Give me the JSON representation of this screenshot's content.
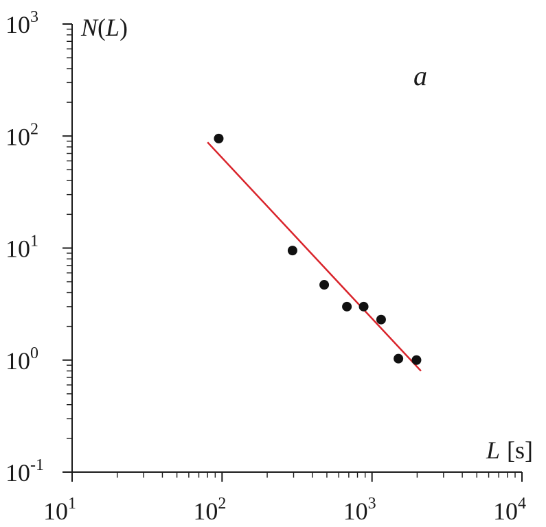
{
  "chart_data": {
    "type": "scatter",
    "panel_label": "a",
    "xlabel": {
      "symbol": "L",
      "unit": "[s]"
    },
    "ylabel": {
      "func": "N",
      "paren_open": "(",
      "symbol": "L",
      "paren_close": ")"
    },
    "x_scale": "log",
    "y_scale": "log",
    "xlim": [
      10,
      10000
    ],
    "ylim": [
      0.1,
      1000
    ],
    "x_ticks": [
      {
        "value": 10,
        "base": "10",
        "exp": "1"
      },
      {
        "value": 100,
        "base": "10",
        "exp": "2"
      },
      {
        "value": 1000,
        "base": "10",
        "exp": "3"
      },
      {
        "value": 10000,
        "base": "10",
        "exp": "4"
      }
    ],
    "y_ticks": [
      {
        "value": 0.1,
        "base": "10",
        "exp": "-1"
      },
      {
        "value": 1,
        "base": "10",
        "exp": "0"
      },
      {
        "value": 10,
        "base": "10",
        "exp": "1"
      },
      {
        "value": 100,
        "base": "10",
        "exp": "2"
      },
      {
        "value": 1000,
        "base": "10",
        "exp": "3"
      }
    ],
    "points": [
      {
        "x": 95,
        "y": 95
      },
      {
        "x": 295,
        "y": 9.5
      },
      {
        "x": 480,
        "y": 4.7
      },
      {
        "x": 680,
        "y": 3.0
      },
      {
        "x": 880,
        "y": 3.0
      },
      {
        "x": 1150,
        "y": 2.3
      },
      {
        "x": 1500,
        "y": 1.03
      },
      {
        "x": 1980,
        "y": 1.0
      }
    ],
    "fit_line": {
      "x": [
        80,
        2120
      ],
      "y": [
        88,
        0.8
      ]
    },
    "colors": {
      "points": "#111111",
      "fit": "#d9232a",
      "axes": "#1a1a1a"
    },
    "grid": false
  }
}
